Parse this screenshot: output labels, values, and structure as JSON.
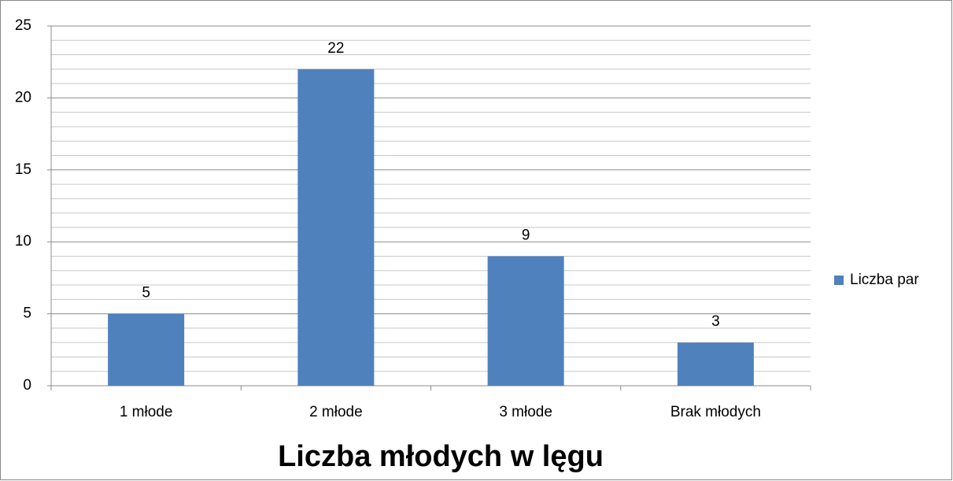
{
  "chart_data": {
    "type": "bar",
    "title": "Liczba młodych w lęgu",
    "categories": [
      "1 młode",
      "2 młode",
      "3 młode",
      "Brak młodych"
    ],
    "series": [
      {
        "name": "Liczba par",
        "color": "#4f81bd",
        "values": [
          5,
          22,
          9,
          3
        ]
      }
    ],
    "ylim": [
      0,
      25
    ],
    "yticks": [
      0,
      5,
      10,
      15,
      20,
      25
    ],
    "minor_yticks": [
      1,
      2,
      3,
      4,
      6,
      7,
      8,
      9,
      11,
      12,
      13,
      14,
      16,
      17,
      18,
      19,
      21,
      22,
      23,
      24
    ],
    "grid": true,
    "legend": "right"
  }
}
